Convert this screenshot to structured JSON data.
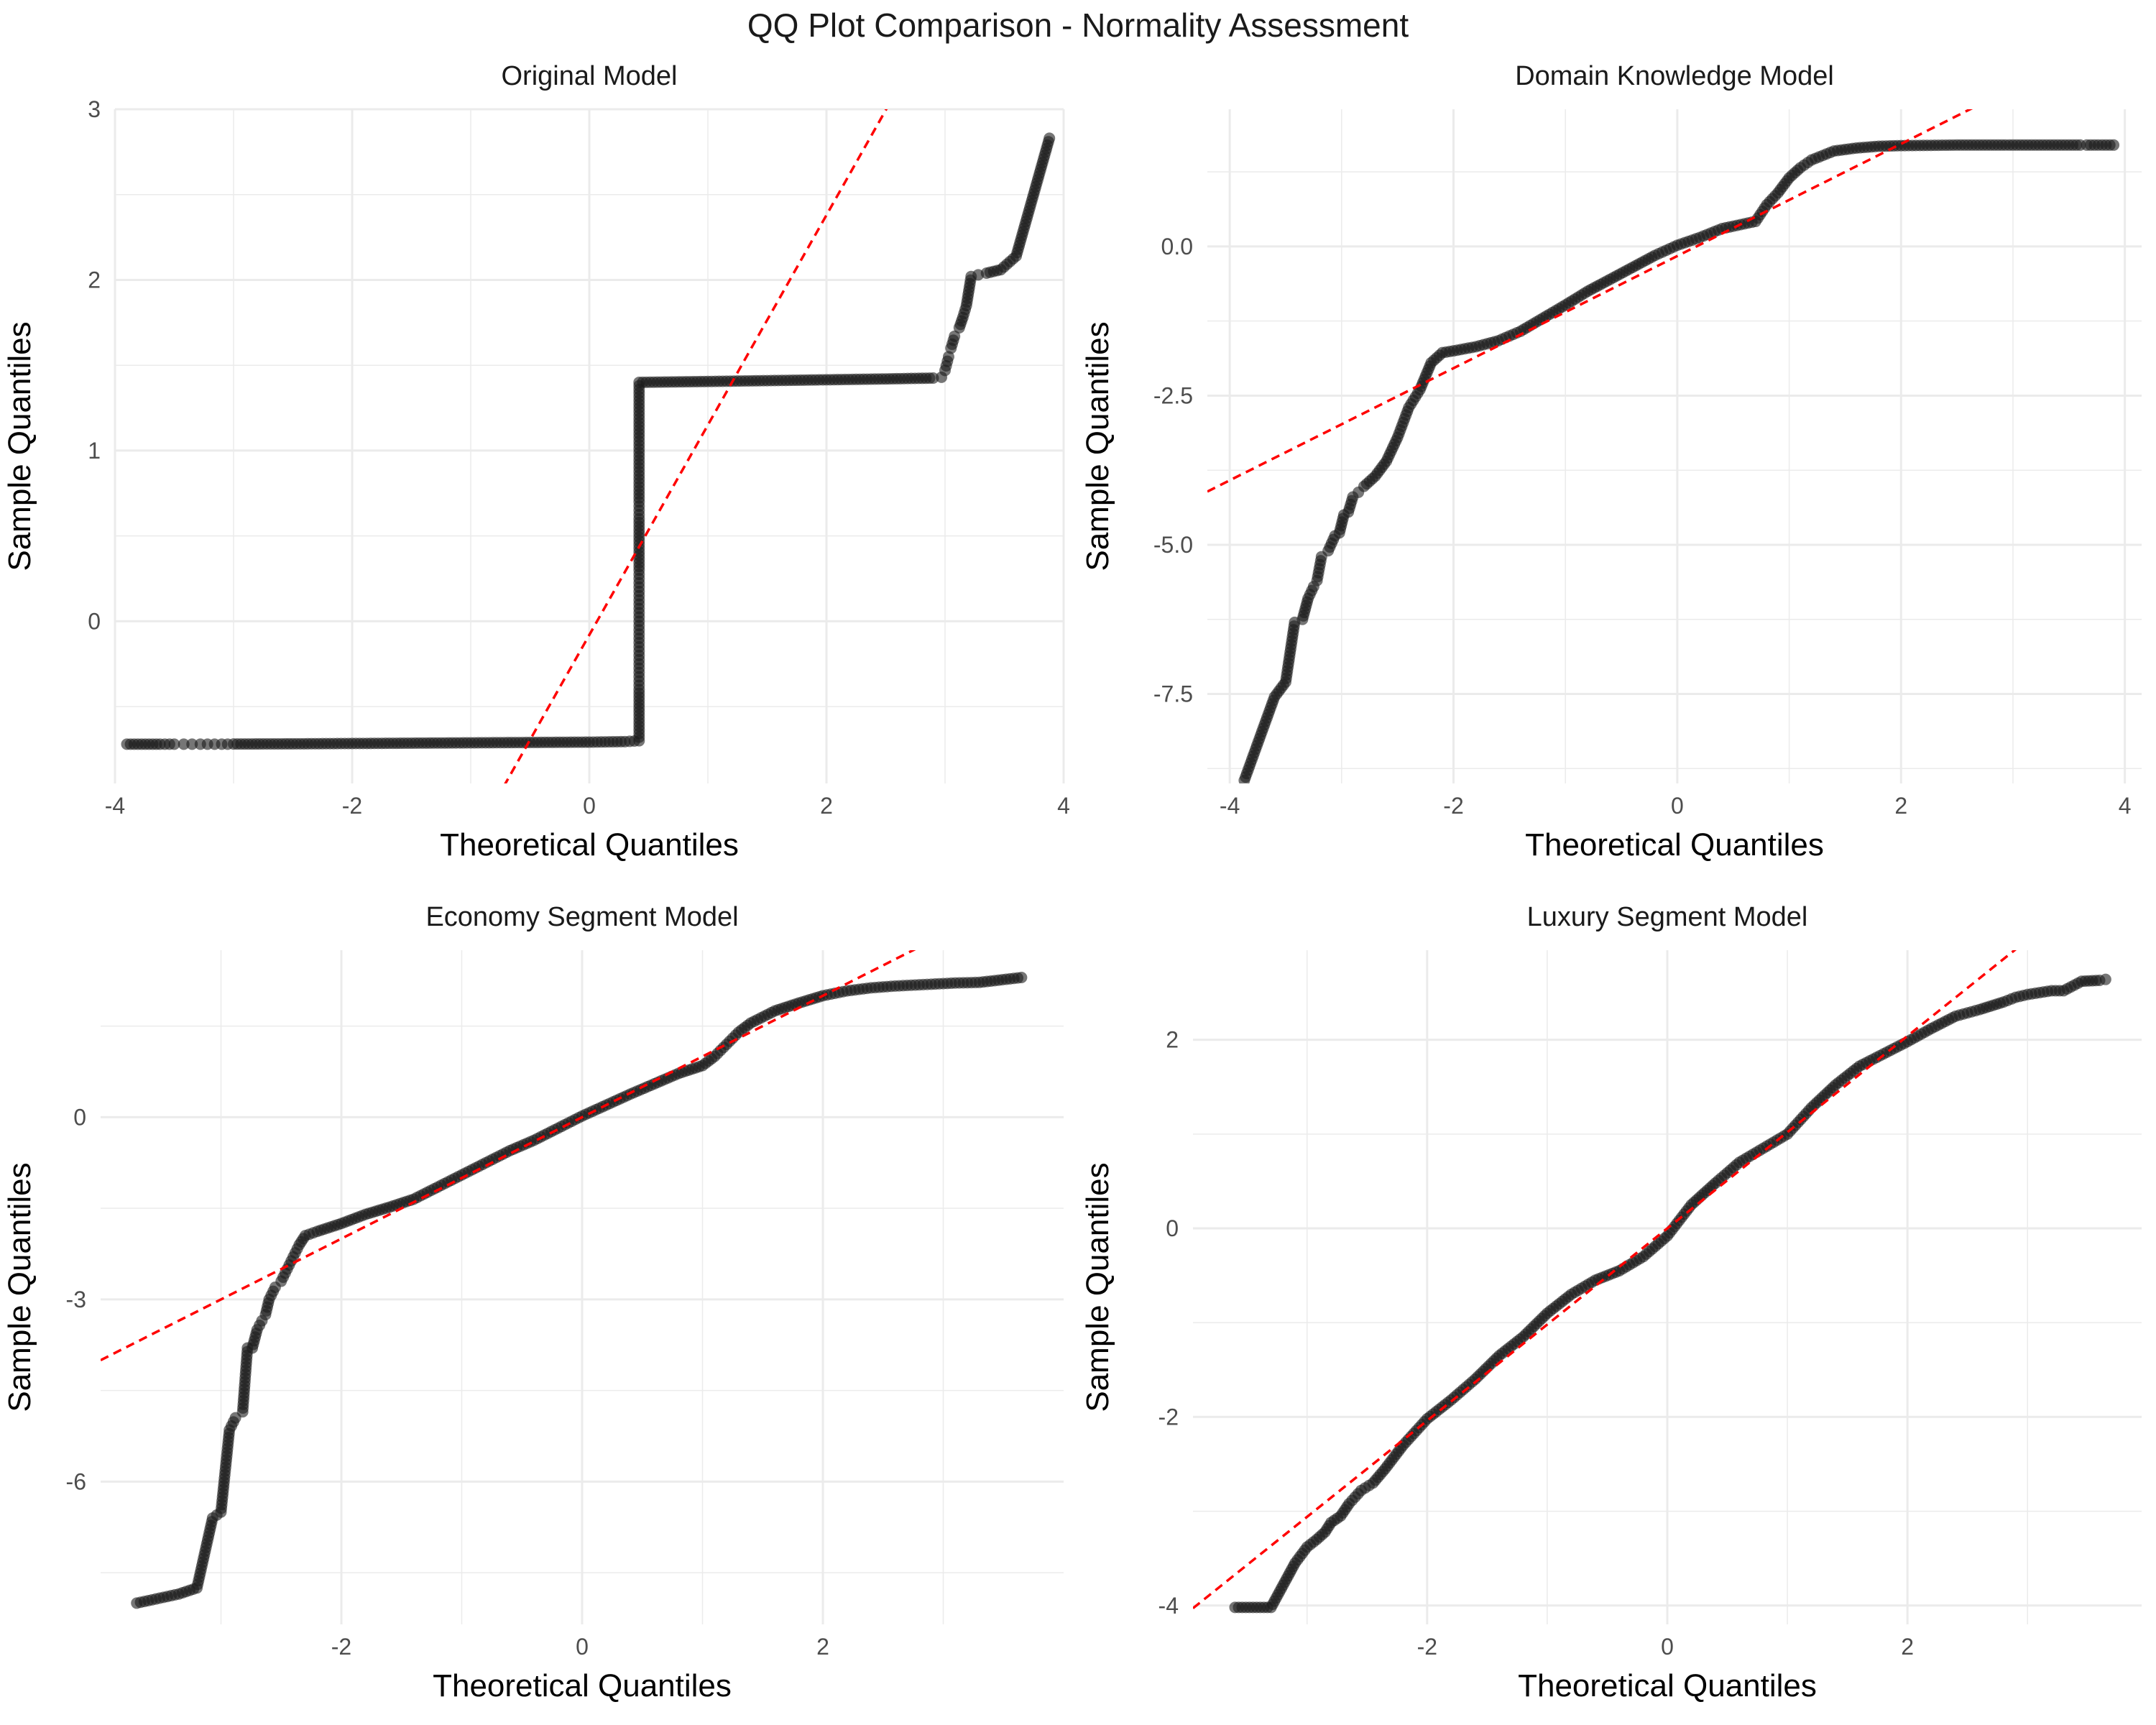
{
  "figure": {
    "title": "QQ Plot Comparison - Normality Assessment"
  },
  "style": {
    "point_color": "#1a1a1a",
    "point_opacity": 0.6,
    "ref_line_color": "#ff0000",
    "grid_color": "#ebebeb",
    "tick_label_color": "#4d4d4d"
  },
  "chart_data": [
    {
      "type": "scatter",
      "title": "Original Model",
      "xlabel": "Theoretical Quantiles",
      "ylabel": "Sample Quantiles",
      "xlim": [
        -4.0,
        4.0
      ],
      "ylim": [
        -0.95,
        3.0
      ],
      "xticks": [
        -4,
        -2,
        0,
        2,
        4
      ],
      "xtick_labels": [
        "-4",
        "-2",
        "0",
        "2",
        "4"
      ],
      "yticks": [
        0,
        1,
        2,
        3
      ],
      "ytick_labels": [
        "0",
        "1",
        "2",
        "3"
      ],
      "grid": true,
      "reference_line": {
        "slope": 1.23,
        "intercept": -0.08
      },
      "series": [
        {
          "points": [
            [
              -3.9,
              -0.72
            ],
            [
              -3.62,
              -0.72
            ],
            [
              -3.5,
              -0.72
            ],
            [
              -3.42,
              -0.72
            ],
            [
              -3.35,
              -0.72
            ],
            [
              -3.28,
              -0.72
            ],
            [
              -3.22,
              -0.72
            ],
            [
              -3.16,
              -0.72
            ],
            [
              -3.1,
              -0.72
            ],
            [
              -3.05,
              -0.72
            ],
            [
              -3.0,
              -0.719
            ],
            [
              -2.5,
              -0.718
            ],
            [
              -2.0,
              -0.716
            ],
            [
              -1.5,
              -0.714
            ],
            [
              -1.0,
              -0.712
            ],
            [
              -0.5,
              -0.71
            ],
            [
              0.0,
              -0.708
            ],
            [
              0.3,
              -0.705
            ],
            [
              0.42,
              -0.7
            ],
            [
              0.42,
              -0.55
            ],
            [
              0.42,
              -0.4
            ],
            [
              0.42,
              -0.3
            ],
            [
              0.42,
              -0.2
            ],
            [
              0.42,
              -0.1
            ],
            [
              0.42,
              0.0
            ],
            [
              0.42,
              0.1
            ],
            [
              0.42,
              0.2
            ],
            [
              0.42,
              0.3
            ],
            [
              0.42,
              0.45
            ],
            [
              0.42,
              0.6
            ],
            [
              0.42,
              0.7
            ],
            [
              0.42,
              0.9
            ],
            [
              0.42,
              1.1
            ],
            [
              0.42,
              1.38
            ],
            [
              0.42,
              1.4
            ],
            [
              1.0,
              1.405
            ],
            [
              1.5,
              1.41
            ],
            [
              2.0,
              1.415
            ],
            [
              2.5,
              1.42
            ],
            [
              2.9,
              1.425
            ],
            [
              2.97,
              1.43
            ],
            [
              3.0,
              1.47
            ],
            [
              3.03,
              1.55
            ],
            [
              3.05,
              1.6
            ],
            [
              3.08,
              1.67
            ],
            [
              3.12,
              1.72
            ],
            [
              3.15,
              1.78
            ],
            [
              3.18,
              1.85
            ],
            [
              3.22,
              2.02
            ],
            [
              3.28,
              2.03
            ],
            [
              3.35,
              2.04
            ],
            [
              3.47,
              2.06
            ],
            [
              3.6,
              2.14
            ],
            [
              3.88,
              2.83
            ]
          ]
        }
      ]
    },
    {
      "type": "scatter",
      "title": "Domain Knowledge Model",
      "xlabel": "Theoretical Quantiles",
      "ylabel": "Sample Quantiles",
      "xlim": [
        -4.2,
        4.15
      ],
      "ylim": [
        -9.0,
        2.3
      ],
      "xticks": [
        -4,
        -2,
        0,
        2,
        4
      ],
      "xtick_labels": [
        "-4",
        "-2",
        "0",
        "2",
        "4"
      ],
      "yticks": [
        -7.5,
        -5.0,
        -2.5,
        0.0
      ],
      "ytick_labels": [
        "-7.5",
        "-5.0",
        "-2.5",
        "0.0"
      ],
      "grid": true,
      "reference_line": {
        "slope": 0.94,
        "intercept": -0.16
      },
      "series": [
        {
          "points": [
            [
              -3.87,
              -8.95
            ],
            [
              -3.6,
              -7.55
            ],
            [
              -3.5,
              -7.3
            ],
            [
              -3.42,
              -6.3
            ],
            [
              -3.35,
              -6.25
            ],
            [
              -3.3,
              -5.9
            ],
            [
              -3.25,
              -5.7
            ],
            [
              -3.22,
              -5.6
            ],
            [
              -3.18,
              -5.2
            ],
            [
              -3.12,
              -5.1
            ],
            [
              -3.06,
              -4.85
            ],
            [
              -3.02,
              -4.8
            ],
            [
              -2.98,
              -4.5
            ],
            [
              -2.94,
              -4.45
            ],
            [
              -2.9,
              -4.2
            ],
            [
              -2.85,
              -4.12
            ],
            [
              -2.8,
              -4.02
            ],
            [
              -2.7,
              -3.85
            ],
            [
              -2.6,
              -3.6
            ],
            [
              -2.5,
              -3.2
            ],
            [
              -2.4,
              -2.7
            ],
            [
              -2.3,
              -2.4
            ],
            [
              -2.2,
              -1.95
            ],
            [
              -2.1,
              -1.78
            ],
            [
              -2.0,
              -1.75
            ],
            [
              -1.8,
              -1.68
            ],
            [
              -1.6,
              -1.58
            ],
            [
              -1.4,
              -1.42
            ],
            [
              -1.2,
              -1.2
            ],
            [
              -1.0,
              -0.98
            ],
            [
              -0.8,
              -0.75
            ],
            [
              -0.6,
              -0.55
            ],
            [
              -0.4,
              -0.35
            ],
            [
              -0.2,
              -0.15
            ],
            [
              0.0,
              0.02
            ],
            [
              0.2,
              0.15
            ],
            [
              0.4,
              0.3
            ],
            [
              0.6,
              0.38
            ],
            [
              0.7,
              0.42
            ],
            [
              0.8,
              0.7
            ],
            [
              0.9,
              0.9
            ],
            [
              1.0,
              1.15
            ],
            [
              1.1,
              1.32
            ],
            [
              1.2,
              1.45
            ],
            [
              1.4,
              1.6
            ],
            [
              1.6,
              1.65
            ],
            [
              1.8,
              1.68
            ],
            [
              2.0,
              1.69
            ],
            [
              2.5,
              1.7
            ],
            [
              3.0,
              1.7
            ],
            [
              3.2,
              1.7
            ],
            [
              3.4,
              1.7
            ],
            [
              3.5,
              1.7
            ],
            [
              3.6,
              1.7
            ],
            [
              3.66,
              1.7
            ],
            [
              3.9,
              1.7
            ]
          ]
        }
      ]
    },
    {
      "type": "scatter",
      "title": "Economy Segment Model",
      "xlabel": "Theoretical Quantiles",
      "ylabel": "Sample Quantiles",
      "xlim": [
        -4.0,
        4.0
      ],
      "ylim": [
        -8.35,
        2.75
      ],
      "xticks": [
        -2,
        0,
        2
      ],
      "xtick_labels": [
        "-2",
        "0",
        "2"
      ],
      "yticks": [
        -6,
        -3,
        0
      ],
      "ytick_labels": [
        "-6",
        "-3",
        "0"
      ],
      "grid": true,
      "reference_line": {
        "slope": 1.0,
        "intercept": 0.0
      },
      "series": [
        {
          "points": [
            [
              -3.7,
              -8.0
            ],
            [
              -3.35,
              -7.85
            ],
            [
              -3.2,
              -7.75
            ],
            [
              -3.07,
              -6.6
            ],
            [
              -3.0,
              -6.5
            ],
            [
              -2.93,
              -5.15
            ],
            [
              -2.88,
              -4.95
            ],
            [
              -2.82,
              -4.85
            ],
            [
              -2.78,
              -3.8
            ],
            [
              -2.74,
              -3.8
            ],
            [
              -2.7,
              -3.5
            ],
            [
              -2.66,
              -3.35
            ],
            [
              -2.63,
              -3.25
            ],
            [
              -2.6,
              -3.0
            ],
            [
              -2.55,
              -2.8
            ],
            [
              -2.5,
              -2.7
            ],
            [
              -2.45,
              -2.5
            ],
            [
              -2.4,
              -2.3
            ],
            [
              -2.35,
              -2.1
            ],
            [
              -2.3,
              -1.95
            ],
            [
              -2.2,
              -1.88
            ],
            [
              -2.0,
              -1.75
            ],
            [
              -1.8,
              -1.6
            ],
            [
              -1.6,
              -1.48
            ],
            [
              -1.4,
              -1.35
            ],
            [
              -1.2,
              -1.15
            ],
            [
              -1.0,
              -0.95
            ],
            [
              -0.8,
              -0.75
            ],
            [
              -0.6,
              -0.55
            ],
            [
              -0.4,
              -0.38
            ],
            [
              -0.2,
              -0.18
            ],
            [
              0.0,
              0.02
            ],
            [
              0.2,
              0.2
            ],
            [
              0.4,
              0.38
            ],
            [
              0.6,
              0.55
            ],
            [
              0.8,
              0.72
            ],
            [
              1.0,
              0.85
            ],
            [
              1.1,
              1.0
            ],
            [
              1.2,
              1.2
            ],
            [
              1.3,
              1.4
            ],
            [
              1.4,
              1.55
            ],
            [
              1.6,
              1.75
            ],
            [
              1.8,
              1.88
            ],
            [
              2.0,
              2.0
            ],
            [
              2.2,
              2.08
            ],
            [
              2.4,
              2.13
            ],
            [
              2.6,
              2.16
            ],
            [
              2.8,
              2.18
            ],
            [
              2.9,
              2.19
            ],
            [
              3.0,
              2.2
            ],
            [
              3.1,
              2.21
            ],
            [
              3.3,
              2.22
            ],
            [
              3.65,
              2.3
            ]
          ]
        }
      ]
    },
    {
      "type": "scatter",
      "title": "Luxury Segment Model",
      "xlabel": "Theoretical Quantiles",
      "ylabel": "Sample Quantiles",
      "xlim": [
        -3.95,
        3.95
      ],
      "ylim": [
        -4.2,
        2.95
      ],
      "xticks": [
        -2,
        0,
        2
      ],
      "xtick_labels": [
        "-2",
        "0",
        "2"
      ],
      "yticks": [
        -4,
        -2,
        0,
        2
      ],
      "ytick_labels": [
        "-4",
        "-2",
        "0",
        "2"
      ],
      "grid": true,
      "reference_line": {
        "slope": 1.02,
        "intercept": 0.0
      },
      "series": [
        {
          "points": [
            [
              -3.6,
              -4.02
            ],
            [
              -3.3,
              -4.02
            ],
            [
              -3.1,
              -3.55
            ],
            [
              -3.0,
              -3.38
            ],
            [
              -2.92,
              -3.3
            ],
            [
              -2.85,
              -3.22
            ],
            [
              -2.8,
              -3.12
            ],
            [
              -2.72,
              -3.05
            ],
            [
              -2.65,
              -2.92
            ],
            [
              -2.55,
              -2.78
            ],
            [
              -2.45,
              -2.7
            ],
            [
              -2.35,
              -2.55
            ],
            [
              -2.2,
              -2.3
            ],
            [
              -2.0,
              -2.02
            ],
            [
              -1.8,
              -1.82
            ],
            [
              -1.6,
              -1.6
            ],
            [
              -1.4,
              -1.35
            ],
            [
              -1.2,
              -1.15
            ],
            [
              -1.0,
              -0.9
            ],
            [
              -0.8,
              -0.7
            ],
            [
              -0.6,
              -0.55
            ],
            [
              -0.4,
              -0.45
            ],
            [
              -0.2,
              -0.3
            ],
            [
              0.0,
              -0.08
            ],
            [
              0.2,
              0.25
            ],
            [
              0.4,
              0.48
            ],
            [
              0.6,
              0.7
            ],
            [
              0.8,
              0.85
            ],
            [
              1.0,
              1.0
            ],
            [
              1.2,
              1.28
            ],
            [
              1.4,
              1.52
            ],
            [
              1.6,
              1.72
            ],
            [
              1.8,
              1.85
            ],
            [
              2.0,
              1.98
            ],
            [
              2.2,
              2.12
            ],
            [
              2.4,
              2.25
            ],
            [
              2.6,
              2.32
            ],
            [
              2.8,
              2.4
            ],
            [
              2.9,
              2.45
            ],
            [
              3.0,
              2.48
            ],
            [
              3.1,
              2.5
            ],
            [
              3.2,
              2.52
            ],
            [
              3.3,
              2.52
            ],
            [
              3.45,
              2.62
            ],
            [
              3.6,
              2.63
            ],
            [
              3.65,
              2.64
            ]
          ]
        }
      ]
    }
  ]
}
